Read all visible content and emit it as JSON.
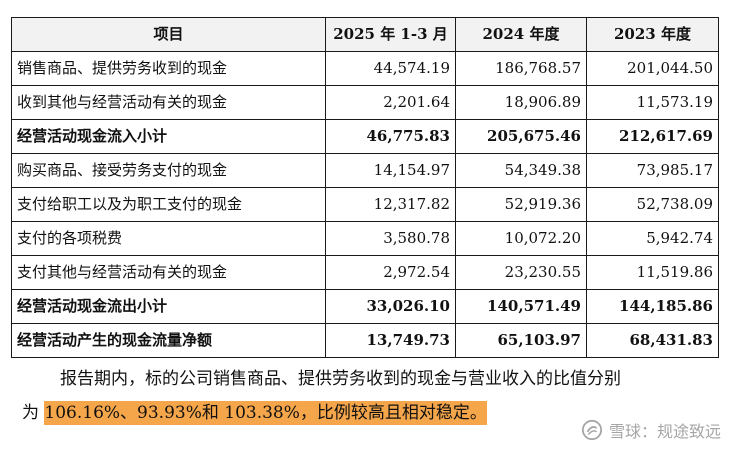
{
  "table": {
    "headers": [
      "项目",
      "2025 年 1-3 月",
      "2024 年度",
      "2023 年度"
    ],
    "rows": [
      {
        "label": "销售商品、提供劳务收到的现金",
        "v1": "44,574.19",
        "v2": "186,768.57",
        "v3": "201,044.50",
        "bold": false
      },
      {
        "label": "收到其他与经营活动有关的现金",
        "v1": "2,201.64",
        "v2": "18,906.89",
        "v3": "11,573.19",
        "bold": false
      },
      {
        "label": "经营活动现金流入小计",
        "v1": "46,775.83",
        "v2": "205,675.46",
        "v3": "212,617.69",
        "bold": true
      },
      {
        "label": "购买商品、接受劳务支付的现金",
        "v1": "14,154.97",
        "v2": "54,349.38",
        "v3": "73,985.17",
        "bold": false
      },
      {
        "label": "支付给职工以及为职工支付的现金",
        "v1": "12,317.82",
        "v2": "52,919.36",
        "v3": "52,738.09",
        "bold": false
      },
      {
        "label": "支付的各项税费",
        "v1": "3,580.78",
        "v2": "10,072.20",
        "v3": "5,942.74",
        "bold": false
      },
      {
        "label": "支付其他与经营活动有关的现金",
        "v1": "2,972.54",
        "v2": "23,230.55",
        "v3": "11,519.86",
        "bold": false
      },
      {
        "label": "经营活动现金流出小计",
        "v1": "33,026.10",
        "v2": "140,571.49",
        "v3": "144,185.86",
        "bold": true
      },
      {
        "label": "经营活动产生的现金流量净额",
        "v1": "13,749.73",
        "v2": "65,103.97",
        "v3": "68,431.83",
        "bold": true
      }
    ]
  },
  "paragraph": {
    "line1": "报告期内，标的公司销售商品、提供劳务收到的现金与营业收入的比值分别",
    "line2_prefix": "为 ",
    "line2_highlight": "106.16%、93.93%和 103.38%，比例较高且相对稳定。",
    "highlight_color": "#f5a64a"
  },
  "watermark": {
    "logo_icon": "snowball-logo-icon",
    "text": "雪球：规途致远"
  }
}
